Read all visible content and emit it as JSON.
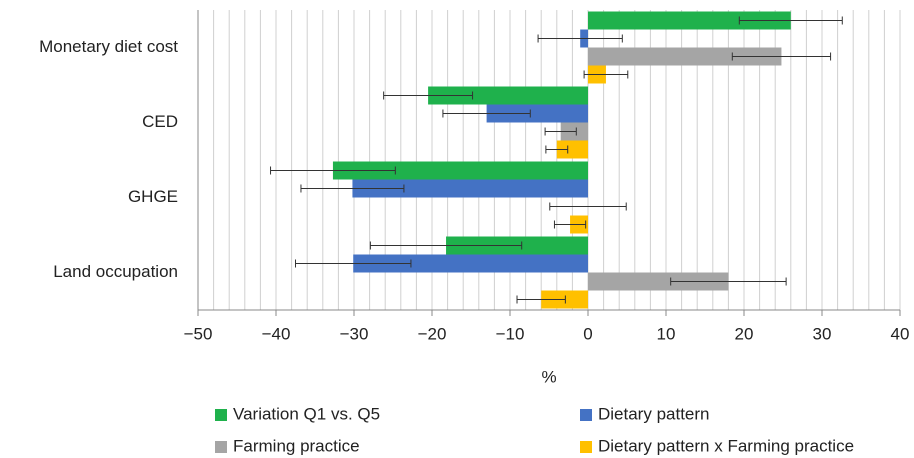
{
  "chart_data": {
    "type": "hbar",
    "categories": [
      "Monetary diet cost",
      "CED",
      "GHGE",
      "Land occupation"
    ],
    "series": [
      {
        "name": "Variation Q1 vs. Q5",
        "color": "#1fb14c",
        "values": [
          26,
          -20.5,
          -32.7,
          -18.2
        ],
        "errors": [
          6.6,
          5.7,
          8,
          9.7
        ]
      },
      {
        "name": "Dietary pattern",
        "color": "#4472c4",
        "values": [
          -1,
          -13,
          -30.2,
          -30.1
        ],
        "errors": [
          5.4,
          5.6,
          6.6,
          7.4
        ]
      },
      {
        "name": "Farming practice",
        "color": "#a5a5a5",
        "values": [
          24.8,
          -3.5,
          0,
          18
        ],
        "errors": [
          6.3,
          2,
          4.9,
          7.4
        ]
      },
      {
        "name": "Dietary pattern x Farming practice",
        "color": "#ffc000",
        "values": [
          2.3,
          -4,
          -2.3,
          -6
        ],
        "errors": [
          2.8,
          1.4,
          2,
          3.1
        ]
      }
    ],
    "xlabel": "%",
    "xlim": [
      -50,
      40
    ],
    "xticks": [
      {
        "value": -50,
        "label": "−50"
      },
      {
        "value": -40,
        "label": "−40"
      },
      {
        "value": -30,
        "label": "−30"
      },
      {
        "value": -20,
        "label": "−20"
      },
      {
        "value": -10,
        "label": "−10"
      },
      0,
      10,
      20,
      30,
      40
    ],
    "minor_grid_step": 2,
    "grid": true
  }
}
